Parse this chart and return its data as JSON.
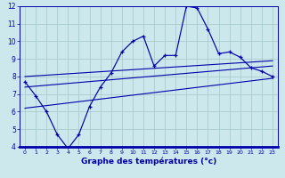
{
  "background_color": "#cce8ec",
  "grid_color": "#aacccc",
  "line_color": "#0000aa",
  "xlabel": "Graphe des températures (°c)",
  "xlim": [
    -0.5,
    23.5
  ],
  "ylim": [
    4,
    12
  ],
  "yticks": [
    4,
    5,
    6,
    7,
    8,
    9,
    10,
    11,
    12
  ],
  "xticks": [
    0,
    1,
    2,
    3,
    4,
    5,
    6,
    7,
    8,
    9,
    10,
    11,
    12,
    13,
    14,
    15,
    16,
    17,
    18,
    19,
    20,
    21,
    22,
    23
  ],
  "main_series_x": [
    0,
    1,
    2,
    3,
    4,
    5,
    6,
    7,
    8,
    9,
    10,
    11,
    12,
    13,
    14,
    15,
    16,
    17,
    18,
    19,
    20,
    21,
    22,
    23
  ],
  "main_series_y": [
    7.7,
    6.9,
    6.0,
    4.7,
    3.9,
    4.7,
    6.3,
    7.4,
    8.2,
    9.4,
    10.0,
    10.3,
    8.6,
    9.2,
    9.2,
    12.0,
    11.9,
    10.7,
    9.3,
    9.4,
    9.1,
    8.5,
    8.3,
    8.0
  ],
  "trend1_x": [
    0,
    23
  ],
  "trend1_y": [
    8.0,
    8.9
  ],
  "trend2_x": [
    0,
    23
  ],
  "trend2_y": [
    7.4,
    8.6
  ],
  "trend3_x": [
    0,
    23
  ],
  "trend3_y": [
    6.2,
    7.9
  ],
  "xlabel_fontsize": 6.5,
  "tick_fontsize_x": 4.5,
  "tick_fontsize_y": 5.5
}
